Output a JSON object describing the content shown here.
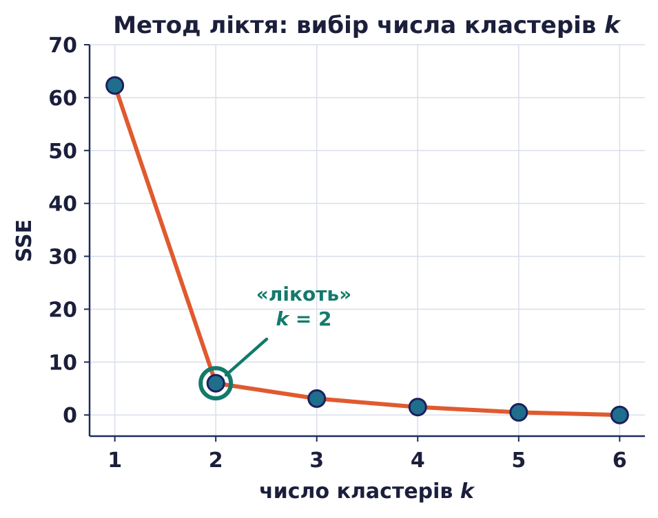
{
  "chart_data": {
    "type": "line",
    "title": "Метод ліктя: вибір числа кластерів",
    "title_var": "k",
    "xlabel": "число кластерів",
    "xlabel_var": "k",
    "ylabel": "SSE",
    "x": [
      1,
      2,
      3,
      4,
      5,
      6
    ],
    "series": [
      {
        "values": [
          62.3,
          6.0,
          3.1,
          1.5,
          0.5,
          0.0
        ]
      }
    ],
    "xlim": [
      0.75,
      6.25
    ],
    "ylim": [
      -4,
      70
    ],
    "x_ticks": [
      1,
      2,
      3,
      4,
      5,
      6
    ],
    "y_ticks": [
      0,
      10,
      20,
      30,
      40,
      50,
      60,
      70
    ],
    "grid": true,
    "annotation": {
      "line1": "«лікоть»",
      "line2_var": "k",
      "line2_rest": " = 2",
      "target_x": 2,
      "target_y": 6.0
    },
    "colors": {
      "line": "#e05a2f",
      "marker_fill": "#1f6e8c",
      "marker_edge": "#1b1f5e",
      "highlight": "#137a6b",
      "axis": "#1f2a5e",
      "grid": "#d9dee9"
    }
  }
}
